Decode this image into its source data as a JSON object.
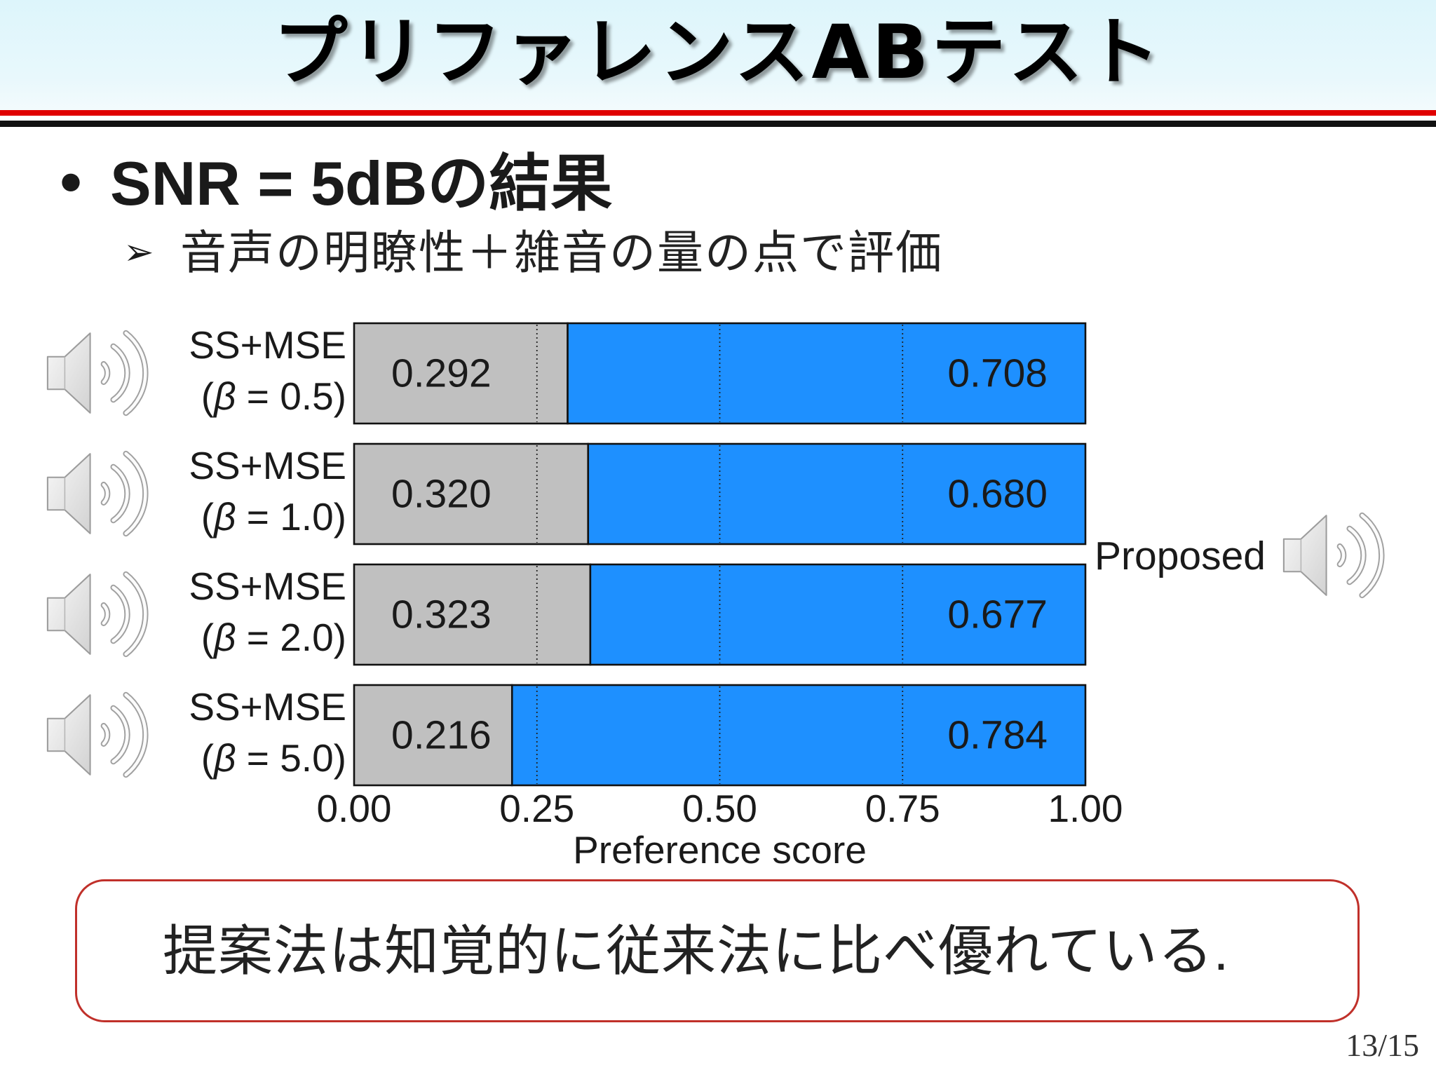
{
  "slide": {
    "title": "プリファレンスABテスト",
    "bullet": {
      "marker": "•",
      "text": "SNR = 5dBの結果"
    },
    "sub_bullet": {
      "marker": "➢",
      "text": "音声の明瞭性＋雑音の量の点で評価"
    },
    "conclusion": "提案法は知覚的に従来法に比べ優れている.",
    "page_number": "13/15"
  },
  "icons": {
    "audio_sample": "speaker-icon"
  },
  "colors": {
    "title_band": "#DDF5FB",
    "rule_red": "#E00000",
    "rule_black": "#111111",
    "conclusion_border": "#C0302A",
    "text": "#1A1A1A"
  },
  "chart_data": {
    "type": "bar",
    "orientation": "horizontal",
    "stacked": true,
    "categories": [
      {
        "line1": "SS+MSE",
        "line2": "(β = 0.5)"
      },
      {
        "line1": "SS+MSE",
        "line2": "(β = 1.0)"
      },
      {
        "line1": "SS+MSE",
        "line2": "(β = 2.0)"
      },
      {
        "line1": "SS+MSE",
        "line2": "(β = 5.0)"
      }
    ],
    "series": [
      {
        "values": [
          0.292,
          0.32,
          0.323,
          0.216
        ],
        "labels": [
          "0.292",
          "0.320",
          "0.323",
          "0.216"
        ],
        "color": "#C0C0C0"
      },
      {
        "name": "Proposed",
        "values": [
          0.708,
          0.68,
          0.677,
          0.784
        ],
        "labels": [
          "0.708",
          "0.680",
          "0.677",
          "0.784"
        ],
        "color": "#1E90FF"
      }
    ],
    "xlabel": "Preference score",
    "xlim": [
      0,
      1
    ],
    "xticks": [
      0,
      0.25,
      0.5,
      0.75,
      1.0
    ],
    "xtick_labels": [
      "0.00",
      "0.25",
      "0.50",
      "0.75",
      "1.00"
    ],
    "grid": {
      "x": true,
      "style": "dotted",
      "at": [
        0.25,
        0.5,
        0.75
      ]
    }
  }
}
